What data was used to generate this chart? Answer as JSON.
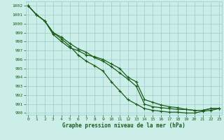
{
  "title": "Graphe pression niveau de la mer (hPa)",
  "background_color": "#cceee8",
  "grid_color": "#99cccc",
  "line_color": "#1a5c1a",
  "xlim": [
    -0.3,
    23.3
  ],
  "ylim": [
    989.8,
    1002.5
  ],
  "yticks": [
    990,
    991,
    992,
    993,
    994,
    995,
    996,
    997,
    998,
    999,
    1000,
    1001,
    1002
  ],
  "xticks": [
    0,
    1,
    2,
    3,
    4,
    5,
    6,
    7,
    8,
    9,
    10,
    11,
    12,
    13,
    14,
    15,
    16,
    17,
    18,
    19,
    20,
    21,
    22,
    23
  ],
  "series1": [
    1002,
    1001,
    1000.3,
    999.0,
    998.5,
    997.8,
    997.2,
    996.8,
    996.2,
    995.8,
    995.2,
    994.5,
    993.8,
    993.0,
    991.0,
    990.7,
    990.6,
    990.5,
    990.4,
    990.4,
    990.3,
    990.3,
    990.5,
    990.5
  ],
  "series2": [
    1002,
    1001,
    1000.3,
    998.8,
    998.0,
    997.3,
    997.0,
    996.5,
    996.3,
    996.0,
    995.5,
    995.0,
    994.0,
    993.5,
    991.5,
    991.2,
    990.9,
    990.7,
    990.6,
    990.4,
    990.3,
    990.3,
    990.5,
    990.5
  ],
  "series3": [
    1002,
    1001,
    1000.3,
    999.0,
    998.3,
    997.5,
    996.5,
    995.8,
    995.3,
    994.7,
    993.5,
    992.5,
    991.5,
    991.0,
    990.5,
    990.3,
    990.2,
    990.1,
    990.1,
    990.0,
    990.0,
    990.2,
    990.3,
    990.5
  ]
}
